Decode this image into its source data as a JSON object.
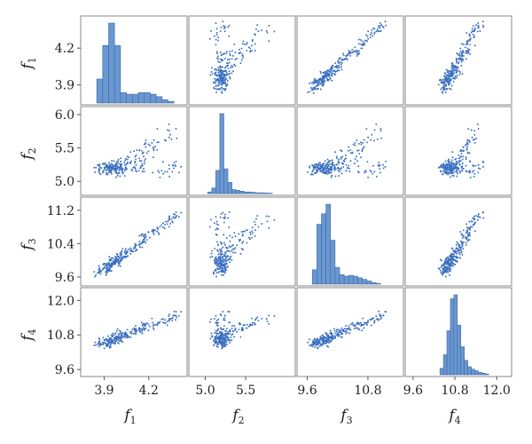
{
  "figure": {
    "type": "scatter-matrix",
    "variables": [
      {
        "base": "f",
        "sub": "1"
      },
      {
        "base": "f",
        "sub": "2"
      },
      {
        "base": "f",
        "sub": "3"
      },
      {
        "base": "f",
        "sub": "4"
      }
    ],
    "color": "#3a6fbf",
    "bar_color": "#6a97d0",
    "bar_edge_color": "#3d6aa9"
  },
  "chart_data": {
    "type": "scatter-matrix",
    "ranges": [
      [
        3.76,
        4.44
      ],
      [
        4.83,
        6.08
      ],
      [
        9.45,
        11.45
      ],
      [
        9.45,
        12.35
      ]
    ],
    "ticks": [
      {
        "values": [
          3.9,
          4.2
        ],
        "labels": [
          "3.9",
          "4.2"
        ]
      },
      {
        "values": [
          5.0,
          5.5,
          6.0
        ],
        "labels": [
          "5.0",
          "5.5",
          "6.0"
        ]
      },
      {
        "values": [
          9.6,
          10.4,
          11.2
        ],
        "labels": [
          "9.6",
          "10.4",
          "11.2"
        ]
      },
      {
        "values": [
          9.6,
          10.8,
          12.0
        ],
        "labels": [
          "9.6",
          "10.8",
          "12.0"
        ]
      }
    ],
    "x_tick_labels": [
      {
        "values": [
          3.9,
          4.2
        ],
        "labels": [
          "3.9",
          "4.2"
        ]
      },
      {
        "values": [
          5.0,
          5.5
        ],
        "labels": [
          "5.0",
          "5.5"
        ]
      },
      {
        "values": [
          9.6,
          10.8
        ],
        "labels": [
          "9.6",
          "10.8"
        ]
      },
      {
        "values": [
          9.6,
          10.8,
          12.0
        ],
        "labels": [
          "9.6",
          "10.8",
          "12.0"
        ]
      }
    ],
    "histograms": [
      {
        "variable": "f1",
        "bins": [
          3.85,
          3.89,
          3.93,
          3.97,
          4.01,
          4.05,
          4.09,
          4.13,
          4.17,
          4.21,
          4.25,
          4.29,
          4.33,
          4.37
        ],
        "counts": [
          0.3,
          0.72,
          1.0,
          0.72,
          0.13,
          0.11,
          0.11,
          0.13,
          0.13,
          0.11,
          0.08,
          0.04,
          0.02
        ]
      },
      {
        "variable": "f2",
        "bins": [
          5.03,
          5.08,
          5.13,
          5.18,
          5.23,
          5.28,
          5.33,
          5.38,
          5.43,
          5.48,
          5.53,
          5.58,
          5.63,
          5.68,
          5.73,
          5.78,
          5.83
        ],
        "counts": [
          0.02,
          0.07,
          0.29,
          1.0,
          0.31,
          0.14,
          0.05,
          0.04,
          0.03,
          0.02,
          0.02,
          0.015,
          0.01,
          0.01,
          0.008,
          0.005
        ]
      },
      {
        "variable": "f3",
        "bins": [
          9.7,
          9.79,
          9.88,
          9.97,
          10.06,
          10.15,
          10.24,
          10.33,
          10.42,
          10.51,
          10.6,
          10.69,
          10.78,
          10.87,
          10.96,
          11.05
        ],
        "counts": [
          0.18,
          0.75,
          0.88,
          1.0,
          0.55,
          0.21,
          0.12,
          0.1,
          0.11,
          0.1,
          0.08,
          0.06,
          0.04,
          0.02,
          0.01
        ]
      },
      {
        "variable": "f4",
        "bins": [
          10.37,
          10.47,
          10.57,
          10.67,
          10.77,
          10.87,
          10.97,
          11.07,
          11.17,
          11.27,
          11.37,
          11.47,
          11.57,
          11.67,
          11.77
        ],
        "counts": [
          0.08,
          0.25,
          0.55,
          0.95,
          1.0,
          0.62,
          0.35,
          0.18,
          0.1,
          0.07,
          0.05,
          0.03,
          0.02,
          0.01
        ]
      }
    ],
    "scatter": {
      "point_count": 260,
      "description": "pairwise relationships; f1 vs f3 and f1 vs f4 are strongly linear, pairs involving f2 show a dense cluster near f2 = 5.2 with an upward-curving branch",
      "pairs": {
        "f1-f2": {
          "cluster": [
            3.93,
            5.18
          ],
          "branch": [
            [
              3.98,
              5.28
            ],
            [
              4.15,
              5.55
            ],
            [
              4.38,
              5.82
            ]
          ]
        },
        "f1-f3": {
          "line": [
            [
              3.87,
              9.72
            ],
            [
              4.4,
              11.12
            ]
          ]
        },
        "f1-f4": {
          "line": [
            [
              3.87,
              10.5
            ],
            [
              4.4,
              11.48
            ]
          ]
        },
        "f2-f3": {
          "cluster": [
            5.18,
            9.95
          ],
          "branch": [
            [
              5.25,
              10.1
            ],
            [
              5.5,
              10.7
            ],
            [
              5.8,
              11.05
            ]
          ]
        },
        "f2-f4": {
          "cluster": [
            5.18,
            10.7
          ],
          "branch": [
            [
              5.25,
              10.85
            ],
            [
              5.5,
              11.25
            ],
            [
              5.8,
              11.55
            ]
          ]
        },
        "f3-f4": {
          "line": [
            [
              9.7,
              10.45
            ],
            [
              11.1,
              11.5
            ]
          ]
        }
      }
    }
  }
}
